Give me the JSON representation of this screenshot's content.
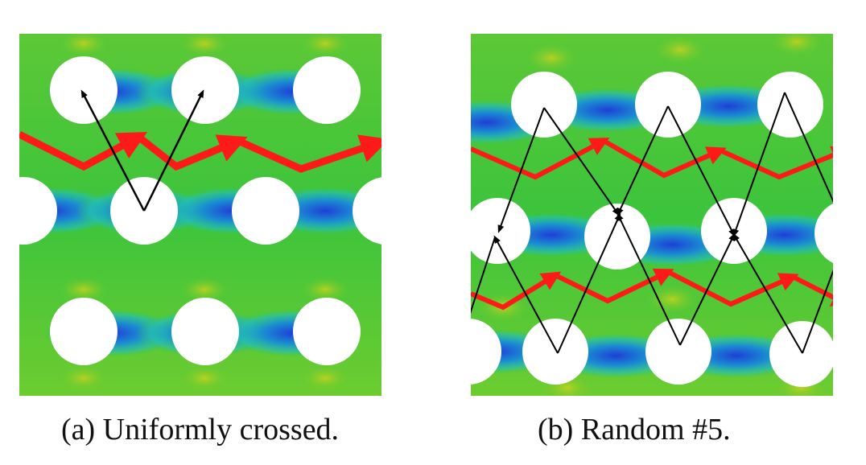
{
  "figure": {
    "panels": [
      {
        "id": "a",
        "caption": "(a) Uniformly crossed."
      },
      {
        "id": "b",
        "caption": "(b) Random #5."
      }
    ]
  },
  "colors": {
    "field_low": "#1a3fd6",
    "field_mid": "#1fb4c8",
    "field_high": "#3cc43c",
    "field_peak": "#c8d21e",
    "hole": "#ffffff",
    "path_red": "#ff1a1a",
    "path_black": "#000000"
  }
}
